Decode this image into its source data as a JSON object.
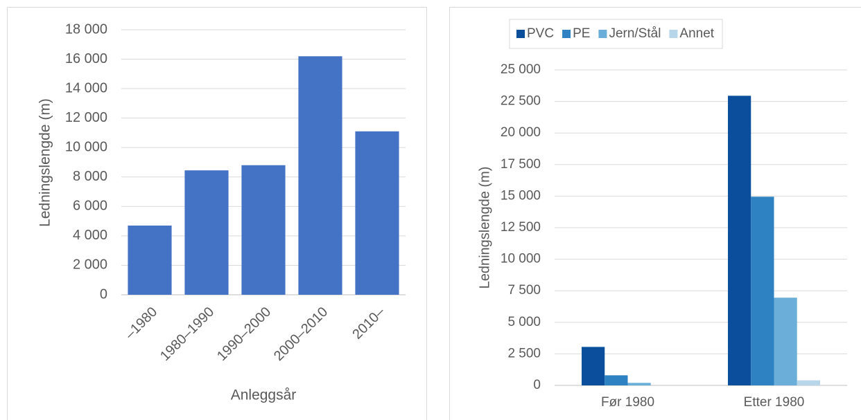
{
  "chart_data": [
    {
      "type": "bar",
      "x_label": "Anleggsår",
      "y_label": "Ledningslengde (m)",
      "categories": [
        "–1980",
        "1980–1990",
        "1990–2000",
        "2000–2010",
        "2010–"
      ],
      "values": [
        4700,
        8450,
        8800,
        16200,
        11100
      ],
      "color": "#4472c4",
      "ylim": [
        0,
        18000
      ],
      "yticks": [
        0,
        {
          "value": 2000,
          "label": "2 000"
        },
        {
          "value": 4000,
          "label": "4 000"
        },
        {
          "value": 6000,
          "label": "6 000"
        },
        {
          "value": 8000,
          "label": "8 000"
        },
        {
          "value": 10000,
          "label": "10 000"
        },
        {
          "value": 12000,
          "label": "12 000"
        },
        {
          "value": 14000,
          "label": "14 000"
        },
        {
          "value": 16000,
          "label": "16 000"
        },
        {
          "value": 18000,
          "label": "18 000"
        }
      ],
      "grid": true
    },
    {
      "type": "bar",
      "y_label": "Ledningslengde (m)",
      "categories": [
        "Før 1980",
        "Etter 1980"
      ],
      "series": [
        {
          "name": "PVC",
          "color": "#0b4f9c",
          "values": [
            3050,
            22950
          ]
        },
        {
          "name": "PE",
          "color": "#2e82c1",
          "values": [
            800,
            14950
          ]
        },
        {
          "name": "Jern/Stål",
          "color": "#6aaed9",
          "values": [
            200,
            6950
          ]
        },
        {
          "name": "Annet",
          "color": "#b8d6ea",
          "values": [
            0,
            400
          ]
        }
      ],
      "ylim": [
        0,
        25000
      ],
      "yticks": [
        0,
        {
          "value": 2500,
          "label": "2 500"
        },
        {
          "value": 5000,
          "label": "5 000"
        },
        {
          "value": 7500,
          "label": "7 500"
        },
        {
          "value": 10000,
          "label": "10 000"
        },
        {
          "value": 12500,
          "label": "12 500"
        },
        {
          "value": 15000,
          "label": "15 000"
        },
        {
          "value": 17500,
          "label": "17 500"
        },
        {
          "value": 20000,
          "label": "20 000"
        },
        {
          "value": 22500,
          "label": "22 500"
        },
        {
          "value": 25000,
          "label": "25 000"
        }
      ],
      "grid": true,
      "legend": "top"
    }
  ]
}
